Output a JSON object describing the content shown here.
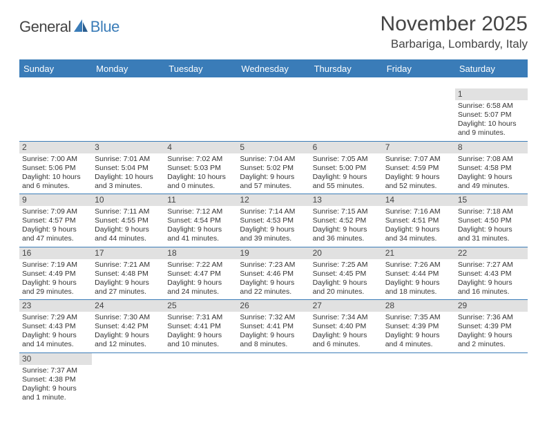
{
  "logo": {
    "text1": "General",
    "text2": "Blue",
    "sail_color": "#3a7cb8"
  },
  "title": "November 2025",
  "location": "Barbariga, Lombardy, Italy",
  "colors": {
    "header_bar": "#3a7cb8",
    "daynum_bg": "#e1e1e1",
    "text": "#333333",
    "title_text": "#444444"
  },
  "fonts": {
    "title_size": 30,
    "location_size": 17,
    "dow_size": 13,
    "daynum_size": 12,
    "body_size": 10.5
  },
  "days_of_week": [
    "Sunday",
    "Monday",
    "Tuesday",
    "Wednesday",
    "Thursday",
    "Friday",
    "Saturday"
  ],
  "weeks": [
    [
      null,
      null,
      null,
      null,
      null,
      null,
      {
        "n": "1",
        "sr": "Sunrise: 6:58 AM",
        "ss": "Sunset: 5:07 PM",
        "dl1": "Daylight: 10 hours",
        "dl2": "and 9 minutes."
      }
    ],
    [
      {
        "n": "2",
        "sr": "Sunrise: 7:00 AM",
        "ss": "Sunset: 5:06 PM",
        "dl1": "Daylight: 10 hours",
        "dl2": "and 6 minutes."
      },
      {
        "n": "3",
        "sr": "Sunrise: 7:01 AM",
        "ss": "Sunset: 5:04 PM",
        "dl1": "Daylight: 10 hours",
        "dl2": "and 3 minutes."
      },
      {
        "n": "4",
        "sr": "Sunrise: 7:02 AM",
        "ss": "Sunset: 5:03 PM",
        "dl1": "Daylight: 10 hours",
        "dl2": "and 0 minutes."
      },
      {
        "n": "5",
        "sr": "Sunrise: 7:04 AM",
        "ss": "Sunset: 5:02 PM",
        "dl1": "Daylight: 9 hours",
        "dl2": "and 57 minutes."
      },
      {
        "n": "6",
        "sr": "Sunrise: 7:05 AM",
        "ss": "Sunset: 5:00 PM",
        "dl1": "Daylight: 9 hours",
        "dl2": "and 55 minutes."
      },
      {
        "n": "7",
        "sr": "Sunrise: 7:07 AM",
        "ss": "Sunset: 4:59 PM",
        "dl1": "Daylight: 9 hours",
        "dl2": "and 52 minutes."
      },
      {
        "n": "8",
        "sr": "Sunrise: 7:08 AM",
        "ss": "Sunset: 4:58 PM",
        "dl1": "Daylight: 9 hours",
        "dl2": "and 49 minutes."
      }
    ],
    [
      {
        "n": "9",
        "sr": "Sunrise: 7:09 AM",
        "ss": "Sunset: 4:57 PM",
        "dl1": "Daylight: 9 hours",
        "dl2": "and 47 minutes."
      },
      {
        "n": "10",
        "sr": "Sunrise: 7:11 AM",
        "ss": "Sunset: 4:55 PM",
        "dl1": "Daylight: 9 hours",
        "dl2": "and 44 minutes."
      },
      {
        "n": "11",
        "sr": "Sunrise: 7:12 AM",
        "ss": "Sunset: 4:54 PM",
        "dl1": "Daylight: 9 hours",
        "dl2": "and 41 minutes."
      },
      {
        "n": "12",
        "sr": "Sunrise: 7:14 AM",
        "ss": "Sunset: 4:53 PM",
        "dl1": "Daylight: 9 hours",
        "dl2": "and 39 minutes."
      },
      {
        "n": "13",
        "sr": "Sunrise: 7:15 AM",
        "ss": "Sunset: 4:52 PM",
        "dl1": "Daylight: 9 hours",
        "dl2": "and 36 minutes."
      },
      {
        "n": "14",
        "sr": "Sunrise: 7:16 AM",
        "ss": "Sunset: 4:51 PM",
        "dl1": "Daylight: 9 hours",
        "dl2": "and 34 minutes."
      },
      {
        "n": "15",
        "sr": "Sunrise: 7:18 AM",
        "ss": "Sunset: 4:50 PM",
        "dl1": "Daylight: 9 hours",
        "dl2": "and 31 minutes."
      }
    ],
    [
      {
        "n": "16",
        "sr": "Sunrise: 7:19 AM",
        "ss": "Sunset: 4:49 PM",
        "dl1": "Daylight: 9 hours",
        "dl2": "and 29 minutes."
      },
      {
        "n": "17",
        "sr": "Sunrise: 7:21 AM",
        "ss": "Sunset: 4:48 PM",
        "dl1": "Daylight: 9 hours",
        "dl2": "and 27 minutes."
      },
      {
        "n": "18",
        "sr": "Sunrise: 7:22 AM",
        "ss": "Sunset: 4:47 PM",
        "dl1": "Daylight: 9 hours",
        "dl2": "and 24 minutes."
      },
      {
        "n": "19",
        "sr": "Sunrise: 7:23 AM",
        "ss": "Sunset: 4:46 PM",
        "dl1": "Daylight: 9 hours",
        "dl2": "and 22 minutes."
      },
      {
        "n": "20",
        "sr": "Sunrise: 7:25 AM",
        "ss": "Sunset: 4:45 PM",
        "dl1": "Daylight: 9 hours",
        "dl2": "and 20 minutes."
      },
      {
        "n": "21",
        "sr": "Sunrise: 7:26 AM",
        "ss": "Sunset: 4:44 PM",
        "dl1": "Daylight: 9 hours",
        "dl2": "and 18 minutes."
      },
      {
        "n": "22",
        "sr": "Sunrise: 7:27 AM",
        "ss": "Sunset: 4:43 PM",
        "dl1": "Daylight: 9 hours",
        "dl2": "and 16 minutes."
      }
    ],
    [
      {
        "n": "23",
        "sr": "Sunrise: 7:29 AM",
        "ss": "Sunset: 4:43 PM",
        "dl1": "Daylight: 9 hours",
        "dl2": "and 14 minutes."
      },
      {
        "n": "24",
        "sr": "Sunrise: 7:30 AM",
        "ss": "Sunset: 4:42 PM",
        "dl1": "Daylight: 9 hours",
        "dl2": "and 12 minutes."
      },
      {
        "n": "25",
        "sr": "Sunrise: 7:31 AM",
        "ss": "Sunset: 4:41 PM",
        "dl1": "Daylight: 9 hours",
        "dl2": "and 10 minutes."
      },
      {
        "n": "26",
        "sr": "Sunrise: 7:32 AM",
        "ss": "Sunset: 4:41 PM",
        "dl1": "Daylight: 9 hours",
        "dl2": "and 8 minutes."
      },
      {
        "n": "27",
        "sr": "Sunrise: 7:34 AM",
        "ss": "Sunset: 4:40 PM",
        "dl1": "Daylight: 9 hours",
        "dl2": "and 6 minutes."
      },
      {
        "n": "28",
        "sr": "Sunrise: 7:35 AM",
        "ss": "Sunset: 4:39 PM",
        "dl1": "Daylight: 9 hours",
        "dl2": "and 4 minutes."
      },
      {
        "n": "29",
        "sr": "Sunrise: 7:36 AM",
        "ss": "Sunset: 4:39 PM",
        "dl1": "Daylight: 9 hours",
        "dl2": "and 2 minutes."
      }
    ],
    [
      {
        "n": "30",
        "sr": "Sunrise: 7:37 AM",
        "ss": "Sunset: 4:38 PM",
        "dl1": "Daylight: 9 hours",
        "dl2": "and 1 minute."
      },
      null,
      null,
      null,
      null,
      null,
      null
    ]
  ]
}
